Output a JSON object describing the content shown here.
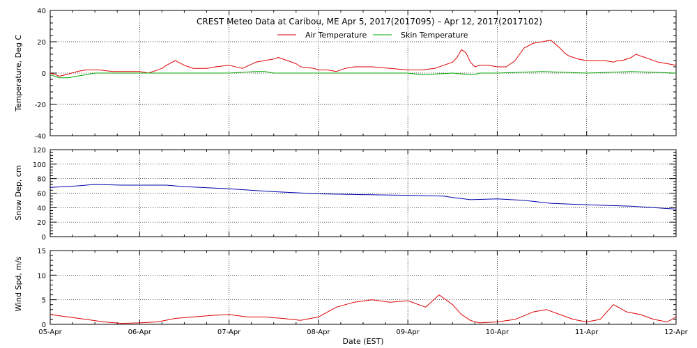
{
  "chart_data": [
    {
      "type": "line",
      "title": "CREST Meteo Data at Caribou, ME   Apr  5, 2017(2017095) – Apr 12, 2017(2017102)",
      "xlabel": "",
      "ylabel": "Temperature, Deg C",
      "ylim": [
        -40,
        40
      ],
      "yticks": [
        "40",
        "20",
        "0",
        "-20",
        "-40"
      ],
      "grid": true,
      "legend_placement": "top-center",
      "series": [
        {
          "name": "Air Temperature",
          "color": "#dd0000",
          "x": [
            0,
            0.06,
            0.1,
            0.18,
            0.3,
            0.4,
            0.55,
            0.7,
            0.85,
            1.0,
            1.1,
            1.25,
            1.3,
            1.4,
            1.5,
            1.55,
            1.6,
            1.68,
            1.75,
            1.85,
            2.0,
            2.15,
            2.3,
            2.4,
            2.5,
            2.55,
            2.65,
            2.75,
            2.8,
            2.95,
            3.0,
            3.1,
            3.2,
            3.3,
            3.4,
            3.6,
            3.8,
            4.0,
            4.15,
            4.3,
            4.4,
            4.5,
            4.55,
            4.6,
            4.65,
            4.7,
            4.75,
            4.8,
            4.9,
            5.0,
            5.1,
            5.2,
            5.3,
            5.4,
            5.5,
            5.6,
            5.7,
            5.75,
            5.8,
            5.85,
            5.9,
            6.0,
            6.1,
            6.2,
            6.3,
            6.35,
            6.4,
            6.5,
            6.55,
            6.6,
            6.65,
            6.7,
            6.8,
            6.9,
            7.0
          ],
          "y": [
            0,
            -1,
            -2,
            -1,
            1,
            2,
            2,
            1,
            1,
            1,
            0,
            3,
            5,
            8,
            5,
            4,
            3,
            3,
            3,
            4,
            5,
            3,
            7,
            8,
            9,
            10,
            8,
            6,
            4,
            3,
            2,
            2,
            1,
            3,
            4,
            4,
            3,
            2,
            2,
            3,
            5,
            7,
            10,
            15,
            13,
            7,
            4,
            5,
            5,
            4,
            4,
            8,
            16,
            19,
            20,
            21,
            16,
            13,
            11,
            10,
            9,
            8,
            8,
            8,
            7,
            8,
            8,
            10,
            12,
            11,
            10,
            9,
            7,
            6,
            5
          ]
        },
        {
          "name": "Skin Temperature",
          "color": "#00aa00",
          "x": [
            0,
            0.05,
            0.1,
            0.2,
            0.3,
            0.4,
            0.5,
            1.0,
            1.5,
            2.0,
            2.3,
            2.4,
            2.5,
            3.0,
            3.5,
            4.0,
            4.15,
            4.2,
            4.5,
            4.7,
            4.75,
            4.8,
            5.0,
            5.5,
            6.0,
            6.5,
            7.0
          ],
          "y": [
            -1,
            -2,
            -3,
            -3,
            -2,
            -1,
            0,
            0,
            0,
            0,
            1,
            1,
            0,
            0,
            0,
            0,
            -1,
            -1,
            0,
            -1,
            -1,
            0,
            0,
            1,
            0,
            1,
            0
          ]
        }
      ]
    },
    {
      "type": "line",
      "title": "",
      "xlabel": "",
      "ylabel": "Snow Dep, cm",
      "ylim": [
        0,
        120
      ],
      "yticks": [
        "120",
        "100",
        "80",
        "60",
        "40",
        "20",
        "0"
      ],
      "grid": true,
      "series": [
        {
          "name": "",
          "color": "#0000aa",
          "x": [
            0,
            0.3,
            0.5,
            0.8,
            1.0,
            1.3,
            1.5,
            2.0,
            2.5,
            3.0,
            3.5,
            4.0,
            4.4,
            4.5,
            4.7,
            5.0,
            5.3,
            5.6,
            6.0,
            6.5,
            7.0
          ],
          "y": [
            68,
            70,
            72,
            71,
            71,
            71,
            69,
            66,
            62,
            59,
            58,
            57,
            56,
            54,
            51,
            52,
            50,
            46,
            44,
            42,
            38
          ]
        }
      ]
    },
    {
      "type": "line",
      "title": "",
      "xlabel": "Date (EST)",
      "ylabel": "Wind Spd, m/s",
      "ylim": [
        0,
        15
      ],
      "yticks": [
        "15",
        "10",
        "5",
        "0"
      ],
      "grid": true,
      "series": [
        {
          "name": "",
          "color": "#dd0000",
          "x": [
            0,
            0.2,
            0.4,
            0.6,
            0.8,
            1.0,
            1.2,
            1.4,
            1.6,
            1.8,
            2.0,
            2.2,
            2.4,
            2.6,
            2.8,
            3.0,
            3.2,
            3.4,
            3.6,
            3.8,
            4.0,
            4.2,
            4.35,
            4.5,
            4.6,
            4.7,
            4.8,
            5.0,
            5.2,
            5.4,
            5.55,
            5.7,
            5.85,
            6.0,
            6.15,
            6.3,
            6.45,
            6.6,
            6.75,
            6.9,
            7.0
          ],
          "y": [
            2,
            1.5,
            1,
            0.5,
            0.2,
            0.3,
            0.5,
            1.2,
            1.5,
            1.8,
            2,
            1.5,
            1.5,
            1.2,
            0.8,
            1.5,
            3.5,
            4.5,
            5,
            4.5,
            4.8,
            3.5,
            6,
            4,
            2,
            0.8,
            0.3,
            0.5,
            1,
            2.5,
            3,
            2,
            1,
            0.5,
            1,
            4,
            2.5,
            2,
            1,
            0.5,
            1.5
          ]
        }
      ]
    }
  ],
  "x_axis": {
    "tick_labels": [
      "05-Apr",
      "06-Apr",
      "07-Apr",
      "08-Apr",
      "09-Apr",
      "10-Apr",
      "11-Apr",
      "12-Apr"
    ],
    "xlim": [
      0,
      7
    ]
  }
}
